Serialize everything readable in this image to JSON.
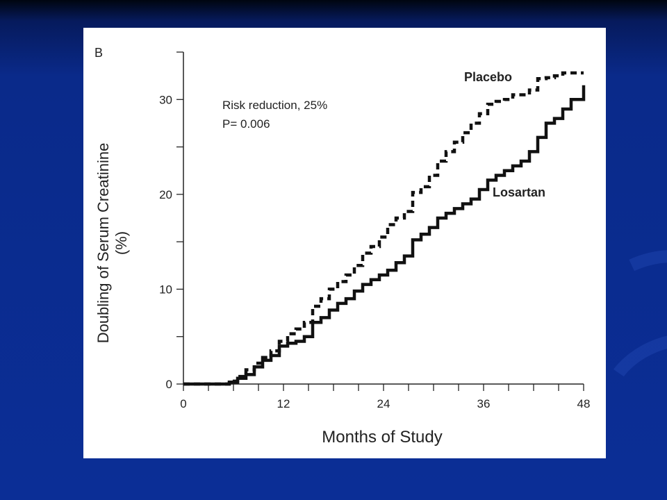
{
  "panel_label": "B",
  "annotation": {
    "line1": "Risk reduction, 25%",
    "line2": "P= 0.006"
  },
  "chart_data": {
    "type": "line",
    "xlabel": "Months of Study",
    "ylabel_line1": "Doubling of Serum Creatinine",
    "ylabel_line2": "(%)",
    "xlim": [
      0,
      48
    ],
    "ylim": [
      0,
      35
    ],
    "xticks": [
      0,
      12,
      24,
      36,
      48
    ],
    "yticks": [
      0,
      10,
      20,
      30
    ],
    "step": true,
    "grid": false,
    "series": [
      {
        "name": "Placebo",
        "style": "dashed",
        "color": "#111111",
        "x": [
          0,
          5.5,
          6.5,
          7.5,
          8.5,
          9.5,
          10.5,
          11.5,
          12.5,
          13.5,
          14.5,
          15.5,
          16.5,
          17.5,
          18.5,
          19.5,
          20.5,
          21.5,
          22.5,
          23.5,
          24.5,
          25.5,
          26.5,
          27.5,
          28.5,
          29.5,
          30.5,
          31.5,
          32.5,
          33.5,
          34.5,
          35.5,
          36.5,
          37.5,
          38.5,
          39.5,
          40.5,
          41.5,
          42.5,
          43.5,
          44.5,
          45.5,
          46.5,
          47.5,
          48
        ],
        "y": [
          0,
          0.3,
          0.8,
          1.5,
          2.2,
          2.8,
          3.5,
          4.5,
          5.3,
          5.8,
          6.5,
          8.2,
          9.0,
          10.0,
          10.8,
          11.5,
          12.5,
          13.8,
          14.5,
          15.5,
          16.8,
          17.5,
          18.2,
          20.2,
          20.8,
          22.0,
          23.5,
          24.5,
          25.5,
          26.5,
          27.5,
          28.5,
          29.5,
          29.8,
          30.0,
          30.5,
          30.5,
          31.0,
          32.2,
          32.3,
          32.5,
          32.8,
          32.8,
          32.8,
          32.8
        ]
      },
      {
        "name": "Losartan",
        "style": "solid",
        "color": "#111111",
        "x": [
          0,
          5.5,
          6.5,
          7.5,
          8.5,
          9.5,
          10.5,
          11.5,
          12.5,
          13.5,
          14.5,
          15.5,
          16.5,
          17.5,
          18.5,
          19.5,
          20.5,
          21.5,
          22.5,
          23.5,
          24.5,
          25.5,
          26.5,
          27.5,
          28.5,
          29.5,
          30.5,
          31.5,
          32.5,
          33.5,
          34.5,
          35.5,
          36.5,
          37.5,
          38.5,
          39.5,
          40.5,
          41.5,
          42.5,
          43.5,
          44.5,
          45.5,
          46.5,
          47.5,
          48
        ],
        "y": [
          0,
          0.2,
          0.6,
          1.0,
          1.8,
          2.5,
          3.0,
          4.0,
          4.3,
          4.5,
          5.0,
          6.5,
          7.0,
          7.8,
          8.5,
          9.0,
          9.8,
          10.5,
          11.0,
          11.5,
          12.0,
          12.8,
          13.5,
          15.2,
          15.8,
          16.5,
          17.5,
          18.0,
          18.5,
          19.0,
          19.5,
          20.5,
          21.5,
          22.0,
          22.5,
          23.0,
          23.5,
          24.5,
          26.0,
          27.5,
          28.0,
          29.0,
          30.0,
          30.0,
          31.5
        ]
      }
    ]
  }
}
